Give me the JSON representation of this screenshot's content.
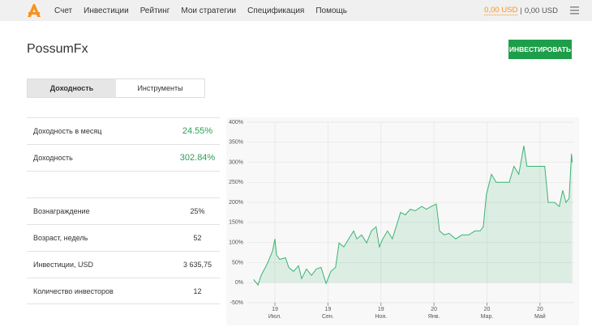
{
  "nav": {
    "items": [
      "Счет",
      "Инвестиции",
      "Рейтинг",
      "Мои стратегии",
      "Спецификация",
      "Помощь"
    ],
    "balance": "0,00 USD",
    "separator": "|",
    "equity": "0,00 USD"
  },
  "header": {
    "title": "PossumFx",
    "button": "ИНВЕСТИРОВАТЬ"
  },
  "tabs": {
    "items": [
      "Доходность",
      "Инструменты"
    ],
    "active": 0
  },
  "stats": {
    "rows": [
      {
        "label": "Доходность в месяц",
        "value": "24.55%",
        "highlight": true
      },
      {
        "label": "Доходность",
        "value": "302.84%",
        "highlight": true
      },
      {
        "label": "Вознаграждение",
        "value": "25%",
        "highlight": false
      },
      {
        "label": "Возраст, недель",
        "value": "52",
        "highlight": false
      },
      {
        "label": "Инвестиции, USD",
        "value": "3 635,75",
        "highlight": false
      },
      {
        "label": "Количество инвесторов",
        "value": "12",
        "highlight": false
      }
    ],
    "blank_after": 1
  },
  "chart": {
    "type": "line",
    "color": "#3cb371",
    "grid": true,
    "x": [
      -0.8,
      -0.64,
      -0.52,
      -0.28,
      -0.09,
      0,
      0.06,
      0.18,
      0.4,
      0.52,
      0.7,
      0.89,
      1.01,
      1.19,
      1.38,
      1.56,
      1.74,
      1.93,
      2.11,
      2.29,
      2.42,
      2.6,
      2.78,
      2.97,
      3.09,
      3.27,
      3.46,
      3.64,
      3.82,
      3.94,
      4.07,
      4.25,
      4.43,
      4.62,
      4.74,
      4.92,
      5.11,
      5.29,
      5.54,
      5.72,
      5.9,
      6.09,
      6.21,
      6.39,
      6.57,
      6.82,
      7.06,
      7.31,
      7.55,
      7.74,
      7.86,
      7.98,
      8.17,
      8.35,
      8.59,
      8.84,
      9.02,
      9.2,
      9.39,
      9.51,
      9.69,
      9.94,
      10.18,
      10.31,
      10.55,
      10.73,
      10.86,
      10.98,
      11.1,
      11.19,
      11.22
    ],
    "values": [
      8,
      -6,
      18,
      48,
      79,
      109,
      69,
      58,
      62,
      38,
      28,
      42,
      10,
      34,
      18,
      34,
      38,
      -2,
      28,
      38,
      99,
      89,
      109,
      129,
      109,
      119,
      99,
      129,
      139,
      89,
      109,
      129,
      109,
      149,
      175,
      169,
      183,
      179,
      190,
      183,
      190,
      196,
      129,
      119,
      123,
      109,
      119,
      119,
      129,
      129,
      139,
      220,
      270,
      250,
      250,
      250,
      290,
      270,
      341,
      290,
      290,
      290,
      290,
      200,
      200,
      190,
      230,
      200,
      210,
      321,
      300
    ],
    "xlim": [
      -1.04,
      11.29
    ],
    "xticks": [
      {
        "value": 0,
        "label": [
          "19",
          "Июл."
        ]
      },
      {
        "value": 2,
        "label": [
          "19",
          "Сен."
        ]
      },
      {
        "value": 4,
        "label": [
          "19",
          "Ноя."
        ]
      },
      {
        "value": 6,
        "label": [
          "20",
          "Янв."
        ]
      },
      {
        "value": 8,
        "label": [
          "20",
          "Мар."
        ]
      },
      {
        "value": 10,
        "label": [
          "20",
          "Май"
        ]
      }
    ],
    "ylim": [
      -50,
      400
    ],
    "yticks": [
      {
        "value": -50,
        "label": "-50%"
      },
      {
        "value": 0,
        "label": "0%"
      },
      {
        "value": 50,
        "label": "50%"
      },
      {
        "value": 100,
        "label": "100%"
      },
      {
        "value": 150,
        "label": "150%"
      },
      {
        "value": 200,
        "label": "200%"
      },
      {
        "value": 250,
        "label": "250%"
      },
      {
        "value": 300,
        "label": "300%"
      },
      {
        "value": 350,
        "label": "350%"
      },
      {
        "value": 400,
        "label": "400%"
      }
    ]
  }
}
